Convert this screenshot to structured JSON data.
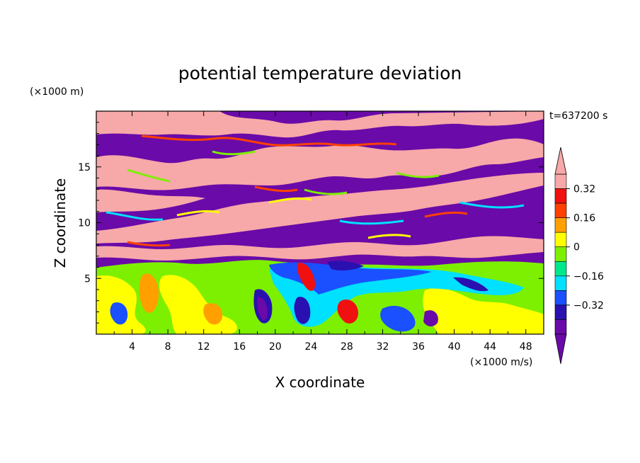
{
  "chart_data": {
    "type": "heatmap",
    "title": "potential temperature deviation",
    "time_label": "t=637200 s",
    "xlabel": "X coordinate",
    "ylabel": "Z coordinate",
    "x_unit": "(×1000 m/s)",
    "y_unit": "(×1000 m)",
    "xlim": [
      0,
      50
    ],
    "ylim": [
      0,
      20
    ],
    "x_ticks": [
      "4",
      "8",
      "12",
      "16",
      "20",
      "24",
      "28",
      "32",
      "36",
      "40",
      "44",
      "48"
    ],
    "y_ticks": [
      "5",
      "10",
      "15"
    ],
    "legend_placement": "right",
    "colorbar": {
      "levels": [
        -0.4,
        -0.32,
        -0.24,
        -0.16,
        -0.08,
        0,
        0.08,
        0.16,
        0.24,
        0.32,
        0.4
      ],
      "tick_labels": [
        "0.32",
        "0.16",
        "0",
        "−0.16",
        "−0.32"
      ],
      "colors": [
        "#6a0aa8",
        "#2a10b0",
        "#1a50ff",
        "#00e0ff",
        "#00e88c",
        "#7cf000",
        "#ffff00",
        "#ffa000",
        "#ff4000",
        "#f01010",
        "#f7a8a8"
      ],
      "extend": "both"
    },
    "colors": {
      "below_min": "#6a0aa8",
      "above_max": "#f7a8a8"
    }
  }
}
